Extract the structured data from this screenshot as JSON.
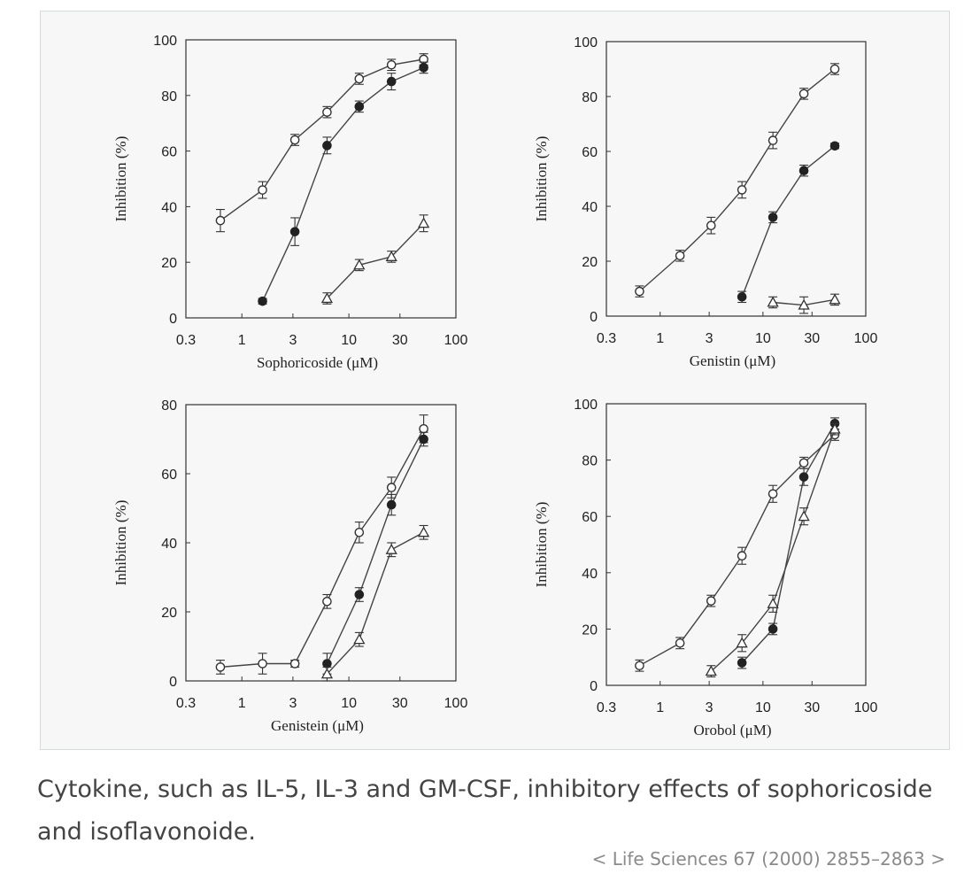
{
  "caption": "Cytokine, such as IL-5, IL-3 and GM-CSF, inhibitory effects of sophoricoside and isoflavonoide.",
  "citation": {
    "prefix": "< ",
    "text": "Life Sciences 67 (2000) 2855–2863",
    "suffix": " >"
  },
  "chart_data": [
    {
      "type": "line",
      "xlabel": "Sophoricoside (μM)",
      "ylabel": "Inhibition (%)",
      "xscale": "log",
      "xlim": [
        0.3,
        100
      ],
      "ylim": [
        0,
        100
      ],
      "xticks": [
        0.3,
        1,
        3,
        10,
        30,
        100
      ],
      "xtick_labels": [
        "0.3",
        "1",
        "3",
        "10",
        "30",
        "100"
      ],
      "yticks": [
        0,
        20,
        40,
        60,
        80,
        100
      ],
      "series": [
        {
          "marker": "open-circle",
          "x": [
            0.63,
            1.56,
            3.13,
            6.25,
            12.5,
            25,
            50
          ],
          "y": [
            35,
            46,
            64,
            74,
            86,
            91,
            93
          ],
          "err": [
            4,
            3,
            2,
            2,
            2,
            2,
            2
          ]
        },
        {
          "marker": "filled-circle",
          "x": [
            1.56,
            3.13,
            6.25,
            12.5,
            25,
            50
          ],
          "y": [
            6,
            31,
            62,
            76,
            85,
            90
          ],
          "err": [
            1,
            5,
            3,
            2,
            3,
            2
          ]
        },
        {
          "marker": "open-triangle",
          "x": [
            6.25,
            12.5,
            25,
            50
          ],
          "y": [
            7,
            19,
            22,
            34
          ],
          "err": [
            2,
            2,
            2,
            3
          ]
        }
      ]
    },
    {
      "type": "line",
      "xlabel": "Genistin (μM)",
      "ylabel": "Inhibition (%)",
      "xscale": "log",
      "xlim": [
        0.3,
        100
      ],
      "ylim": [
        0,
        100
      ],
      "xticks": [
        0.3,
        1,
        3,
        10,
        30,
        100
      ],
      "xtick_labels": [
        "0.3",
        "1",
        "3",
        "10",
        "30",
        "100"
      ],
      "yticks": [
        0,
        20,
        40,
        60,
        80,
        100
      ],
      "series": [
        {
          "marker": "open-circle",
          "x": [
            0.63,
            1.56,
            3.13,
            6.25,
            12.5,
            25,
            50
          ],
          "y": [
            9,
            22,
            33,
            46,
            64,
            81,
            90
          ],
          "err": [
            2,
            2,
            3,
            3,
            3,
            2,
            2
          ]
        },
        {
          "marker": "filled-circle",
          "x": [
            6.25,
            12.5,
            25,
            50
          ],
          "y": [
            7,
            36,
            53,
            62
          ],
          "err": [
            2,
            2,
            2,
            1
          ]
        },
        {
          "marker": "open-triangle",
          "x": [
            12.5,
            25,
            50
          ],
          "y": [
            5,
            4,
            6
          ],
          "err": [
            2,
            3,
            2
          ]
        }
      ]
    },
    {
      "type": "line",
      "xlabel": "Genistein (μM)",
      "ylabel": "Inhibition (%)",
      "xscale": "log",
      "xlim": [
        0.3,
        100
      ],
      "ylim": [
        0,
        80
      ],
      "xticks": [
        0.3,
        1,
        3,
        10,
        30,
        100
      ],
      "xtick_labels": [
        "0.3",
        "1",
        "3",
        "10",
        "30",
        "100"
      ],
      "yticks": [
        0,
        20,
        40,
        60,
        80
      ],
      "series": [
        {
          "marker": "open-circle",
          "x": [
            0.63,
            1.56,
            3.13,
            6.25,
            12.5,
            25,
            50
          ],
          "y": [
            4,
            5,
            5,
            23,
            43,
            56,
            73
          ],
          "err": [
            2,
            3,
            1,
            2,
            3,
            3,
            4
          ]
        },
        {
          "marker": "filled-circle",
          "x": [
            6.25,
            12.5,
            25,
            50
          ],
          "y": [
            5,
            25,
            51,
            70
          ],
          "err": [
            3,
            2,
            3,
            2
          ]
        },
        {
          "marker": "open-triangle",
          "x": [
            6.25,
            12.5,
            25,
            50
          ],
          "y": [
            2,
            12,
            38,
            43
          ],
          "err": [
            2,
            2,
            2,
            2
          ]
        }
      ]
    },
    {
      "type": "line",
      "xlabel": "Orobol (μM)",
      "ylabel": "Inhibition (%)",
      "xscale": "log",
      "xlim": [
        0.3,
        100
      ],
      "ylim": [
        0,
        100
      ],
      "xticks": [
        0.3,
        1,
        3,
        10,
        30,
        100
      ],
      "xtick_labels": [
        "0.3",
        "1",
        "3",
        "10",
        "30",
        "100"
      ],
      "yticks": [
        0,
        20,
        40,
        60,
        80,
        100
      ],
      "series": [
        {
          "marker": "open-circle",
          "x": [
            0.63,
            1.56,
            3.13,
            6.25,
            12.5,
            25,
            50
          ],
          "y": [
            7,
            15,
            30,
            46,
            68,
            79,
            89
          ],
          "err": [
            2,
            2,
            2,
            3,
            3,
            2,
            2
          ]
        },
        {
          "marker": "filled-circle",
          "x": [
            6.25,
            12.5,
            25,
            50
          ],
          "y": [
            8,
            20,
            74,
            93
          ],
          "err": [
            2,
            2,
            3,
            2
          ]
        },
        {
          "marker": "open-triangle",
          "x": [
            3.13,
            6.25,
            12.5,
            25,
            50
          ],
          "y": [
            5,
            15,
            29,
            60,
            91
          ],
          "err": [
            2,
            3,
            3,
            3,
            2
          ]
        }
      ]
    }
  ]
}
